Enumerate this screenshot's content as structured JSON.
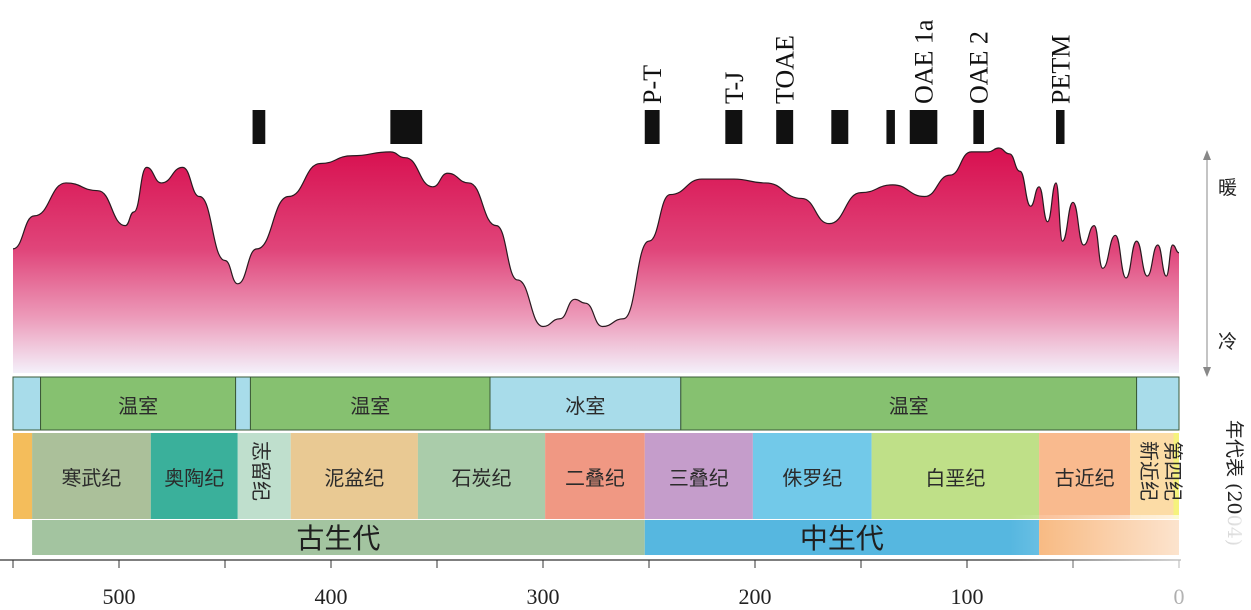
{
  "chart_data": {
    "type": "area",
    "x_axis": {
      "ticks": [
        500,
        400,
        300,
        200,
        100,
        0
      ],
      "tick_labels": [
        "500",
        "400",
        "300",
        "200",
        "100",
        "0"
      ],
      "range": [
        550,
        0
      ]
    },
    "climate_labels": {
      "warm": "暖",
      "cold": "冷"
    },
    "climate_curve": {
      "x": [
        550,
        540,
        525,
        510,
        497,
        493,
        487,
        480,
        470,
        462,
        450,
        444,
        435,
        420,
        405,
        390,
        372,
        365,
        352,
        345,
        335,
        322,
        312,
        300,
        292,
        285,
        280,
        272,
        262,
        250,
        240,
        225,
        210,
        195,
        178,
        165,
        150,
        135,
        120,
        108,
        98,
        90,
        85,
        80,
        75,
        70,
        66,
        62,
        58,
        55,
        50,
        45,
        40,
        36,
        30,
        25,
        20,
        15,
        10,
        6,
        3,
        0
      ],
      "y": [
        0.48,
        0.65,
        0.82,
        0.78,
        0.6,
        0.67,
        0.9,
        0.82,
        0.9,
        0.75,
        0.42,
        0.3,
        0.48,
        0.75,
        0.92,
        0.96,
        0.98,
        0.95,
        0.8,
        0.87,
        0.82,
        0.6,
        0.32,
        0.08,
        0.12,
        0.22,
        0.2,
        0.08,
        0.12,
        0.52,
        0.76,
        0.84,
        0.84,
        0.82,
        0.74,
        0.61,
        0.77,
        0.81,
        0.75,
        0.86,
        0.98,
        0.98,
        1.0,
        0.97,
        0.88,
        0.7,
        0.8,
        0.62,
        0.82,
        0.52,
        0.72,
        0.5,
        0.6,
        0.38,
        0.55,
        0.33,
        0.52,
        0.34,
        0.5,
        0.34,
        0.5,
        0.46
      ]
    },
    "events": [
      {
        "label": "",
        "start": 437,
        "end": 431
      },
      {
        "label": "",
        "start": 372,
        "end": 357
      },
      {
        "label": "P-T",
        "start": 252,
        "end": 245
      },
      {
        "label": "T-J",
        "start": 214,
        "end": 206
      },
      {
        "label": "TOAE",
        "start": 190,
        "end": 182
      },
      {
        "label": "",
        "start": 164,
        "end": 156
      },
      {
        "label": "",
        "start": 138,
        "end": 134
      },
      {
        "label": "OAE 1a",
        "start": 127,
        "end": 114
      },
      {
        "label": "OAE 2",
        "start": 97,
        "end": 92
      },
      {
        "label": "PETM",
        "start": 58,
        "end": 54
      }
    ],
    "climate_states": [
      {
        "label": "",
        "start": 550,
        "end": 537,
        "type": "icehouse"
      },
      {
        "label": "温室",
        "start": 537,
        "end": 445,
        "type": "greenhouse"
      },
      {
        "label": "",
        "start": 445,
        "end": 438,
        "type": "icehouse"
      },
      {
        "label": "温室",
        "start": 438,
        "end": 325,
        "type": "greenhouse"
      },
      {
        "label": "冰室",
        "start": 325,
        "end": 235,
        "type": "icehouse"
      },
      {
        "label": "温室",
        "start": 235,
        "end": 20,
        "type": "greenhouse"
      },
      {
        "label": "",
        "start": 20,
        "end": 0,
        "type": "icehouse"
      }
    ],
    "periods": [
      {
        "label": "",
        "start": 550,
        "end": 541,
        "color": "#f3b444"
      },
      {
        "label": "寒武纪",
        "start": 541,
        "end": 485,
        "color": "#9fb78c"
      },
      {
        "label": "奥陶纪",
        "start": 485,
        "end": 444,
        "color": "#1fa58d"
      },
      {
        "label": "志留纪",
        "start": 444,
        "end": 419,
        "color": "#b6dbc6"
      },
      {
        "label": "泥盆纪",
        "start": 419,
        "end": 359,
        "color": "#e6c184"
      },
      {
        "label": "石炭纪",
        "start": 359,
        "end": 299,
        "color": "#9ec59e"
      },
      {
        "label": "二叠纪",
        "start": 299,
        "end": 252,
        "color": "#ee8a72"
      },
      {
        "label": "三叠纪",
        "start": 252,
        "end": 201,
        "color": "#bd8fc4"
      },
      {
        "label": "侏罗纪",
        "start": 201,
        "end": 145,
        "color": "#5fc2e6"
      },
      {
        "label": "白垩纪",
        "start": 145,
        "end": 66,
        "color": "#b6dc78"
      },
      {
        "label": "古近纪",
        "start": 66,
        "end": 23,
        "color": "#f8b07e"
      },
      {
        "label": "新近纪",
        "start": 23,
        "end": 2.6,
        "color": "#fcd79a"
      },
      {
        "label": "第四纪",
        "start": 2.6,
        "end": 0,
        "color": "#f4f06b"
      }
    ],
    "eras": [
      {
        "label": "古生代",
        "start": 541,
        "end": 252,
        "color": "#a3c4a0"
      },
      {
        "label": "中生代",
        "start": 252,
        "end": 66,
        "color": "#56b7e0"
      },
      {
        "label": "",
        "start": 66,
        "end": 0,
        "color": "#f7b274"
      }
    ],
    "side_note": "年代表 (2004)"
  }
}
